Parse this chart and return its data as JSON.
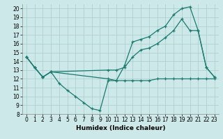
{
  "bg_color": "#cce8e8",
  "line_color": "#1a7a6e",
  "grid_color": "#aacccc",
  "xlabel": "Humidex (Indice chaleur)",
  "xlim": [
    -0.5,
    23.5
  ],
  "ylim": [
    8,
    20.5
  ],
  "yticks": [
    8,
    9,
    10,
    11,
    12,
    13,
    14,
    15,
    16,
    17,
    18,
    19,
    20
  ],
  "xticks": [
    0,
    1,
    2,
    3,
    4,
    5,
    6,
    7,
    8,
    9,
    10,
    11,
    12,
    13,
    14,
    15,
    16,
    17,
    18,
    19,
    20,
    21,
    22,
    23
  ],
  "series": [
    {
      "x": [
        0,
        1,
        2,
        3,
        4,
        5,
        6,
        7,
        8,
        9,
        10,
        11,
        12,
        13,
        14,
        15,
        16,
        17,
        18,
        19,
        20,
        21,
        22,
        23
      ],
      "y": [
        14.5,
        13.3,
        12.2,
        12.8,
        11.5,
        10.7,
        10.0,
        9.3,
        8.6,
        8.4,
        11.8,
        11.8,
        11.8,
        11.8,
        11.8,
        11.8,
        12.0,
        12.0,
        12.0,
        12.0,
        12.0,
        12.0,
        12.0,
        12.0
      ]
    },
    {
      "x": [
        0,
        1,
        2,
        3,
        10,
        11,
        12,
        13,
        14,
        15,
        16,
        17,
        18,
        19,
        20,
        21,
        22,
        23
      ],
      "y": [
        14.5,
        13.3,
        12.2,
        12.8,
        13.0,
        13.0,
        13.3,
        14.5,
        15.3,
        15.5,
        16.0,
        16.7,
        17.5,
        18.8,
        17.5,
        17.5,
        13.3,
        12.2
      ]
    },
    {
      "x": [
        0,
        1,
        2,
        3,
        10,
        11,
        12,
        13,
        14,
        15,
        16,
        17,
        18,
        19,
        20,
        21,
        22,
        23
      ],
      "y": [
        14.5,
        13.3,
        12.2,
        12.8,
        12.0,
        11.8,
        13.5,
        16.2,
        16.5,
        16.8,
        17.5,
        18.0,
        19.3,
        20.0,
        20.2,
        17.5,
        13.3,
        12.2
      ]
    }
  ]
}
